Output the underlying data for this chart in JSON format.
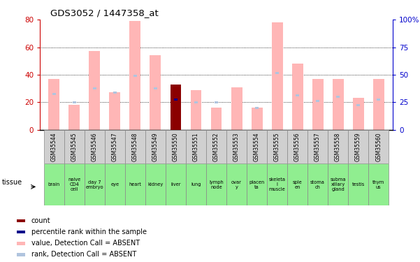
{
  "title": "GDS3052 / 1447358_at",
  "gsm_labels": [
    "GSM35544",
    "GSM35545",
    "GSM35546",
    "GSM35547",
    "GSM35548",
    "GSM35549",
    "GSM35550",
    "GSM35551",
    "GSM35552",
    "GSM35553",
    "GSM35554",
    "GSM35555",
    "GSM35556",
    "GSM35557",
    "GSM35558",
    "GSM35559",
    "GSM35560"
  ],
  "tissue_labels": [
    "brain",
    "naive\nCD4\ncell",
    "day 7\nembryо",
    "eye",
    "heart",
    "kidney",
    "liver",
    "lung",
    "lymph\nnode",
    "ovar\ny",
    "placen\nta",
    "skeleta\nl\nmuscle",
    "sple\nen",
    "stoma\nch",
    "subma\nxillary\ngland",
    "testis",
    "thym\nus"
  ],
  "value_absent": [
    37,
    18,
    57,
    27,
    79,
    54,
    0,
    29,
    16,
    31,
    16,
    78,
    48,
    37,
    37,
    23,
    37
  ],
  "rank_absent": [
    26,
    20,
    30,
    27,
    39,
    30,
    0,
    20,
    20,
    0,
    16,
    41,
    25,
    21,
    24,
    18,
    22
  ],
  "count_value": [
    0,
    0,
    0,
    0,
    0,
    0,
    33,
    0,
    0,
    0,
    0,
    0,
    0,
    0,
    0,
    0,
    0
  ],
  "percentile_rank": [
    0,
    0,
    0,
    0,
    0,
    0,
    22,
    0,
    0,
    0,
    0,
    0,
    0,
    0,
    0,
    0,
    0
  ],
  "count_bar_color": "#8b0000",
  "value_absent_color": "#ffb6b6",
  "rank_absent_color": "#b0c4de",
  "percentile_color": "#00008b",
  "ylim_left": [
    0,
    80
  ],
  "ylim_right": [
    0,
    100
  ],
  "yticks_left": [
    0,
    20,
    40,
    60,
    80
  ],
  "yticks_right": [
    0,
    25,
    50,
    75,
    100
  ],
  "ylabel_left_color": "#cc0000",
  "ylabel_right_color": "#0000cc",
  "grid_lines": [
    20,
    40,
    60
  ],
  "tissue_color": "#90ee90",
  "gsm_bg_color": "#d0d0d0",
  "legend_items": [
    {
      "label": "count",
      "color": "#8b0000",
      "row": 0,
      "col": 0
    },
    {
      "label": "percentile rank within the sample",
      "color": "#00008b",
      "row": 1,
      "col": 0
    },
    {
      "label": "value, Detection Call = ABSENT",
      "color": "#ffb6b6",
      "row": 2,
      "col": 0
    },
    {
      "label": "rank, Detection Call = ABSENT",
      "color": "#b0c4de",
      "row": 3,
      "col": 0
    }
  ]
}
